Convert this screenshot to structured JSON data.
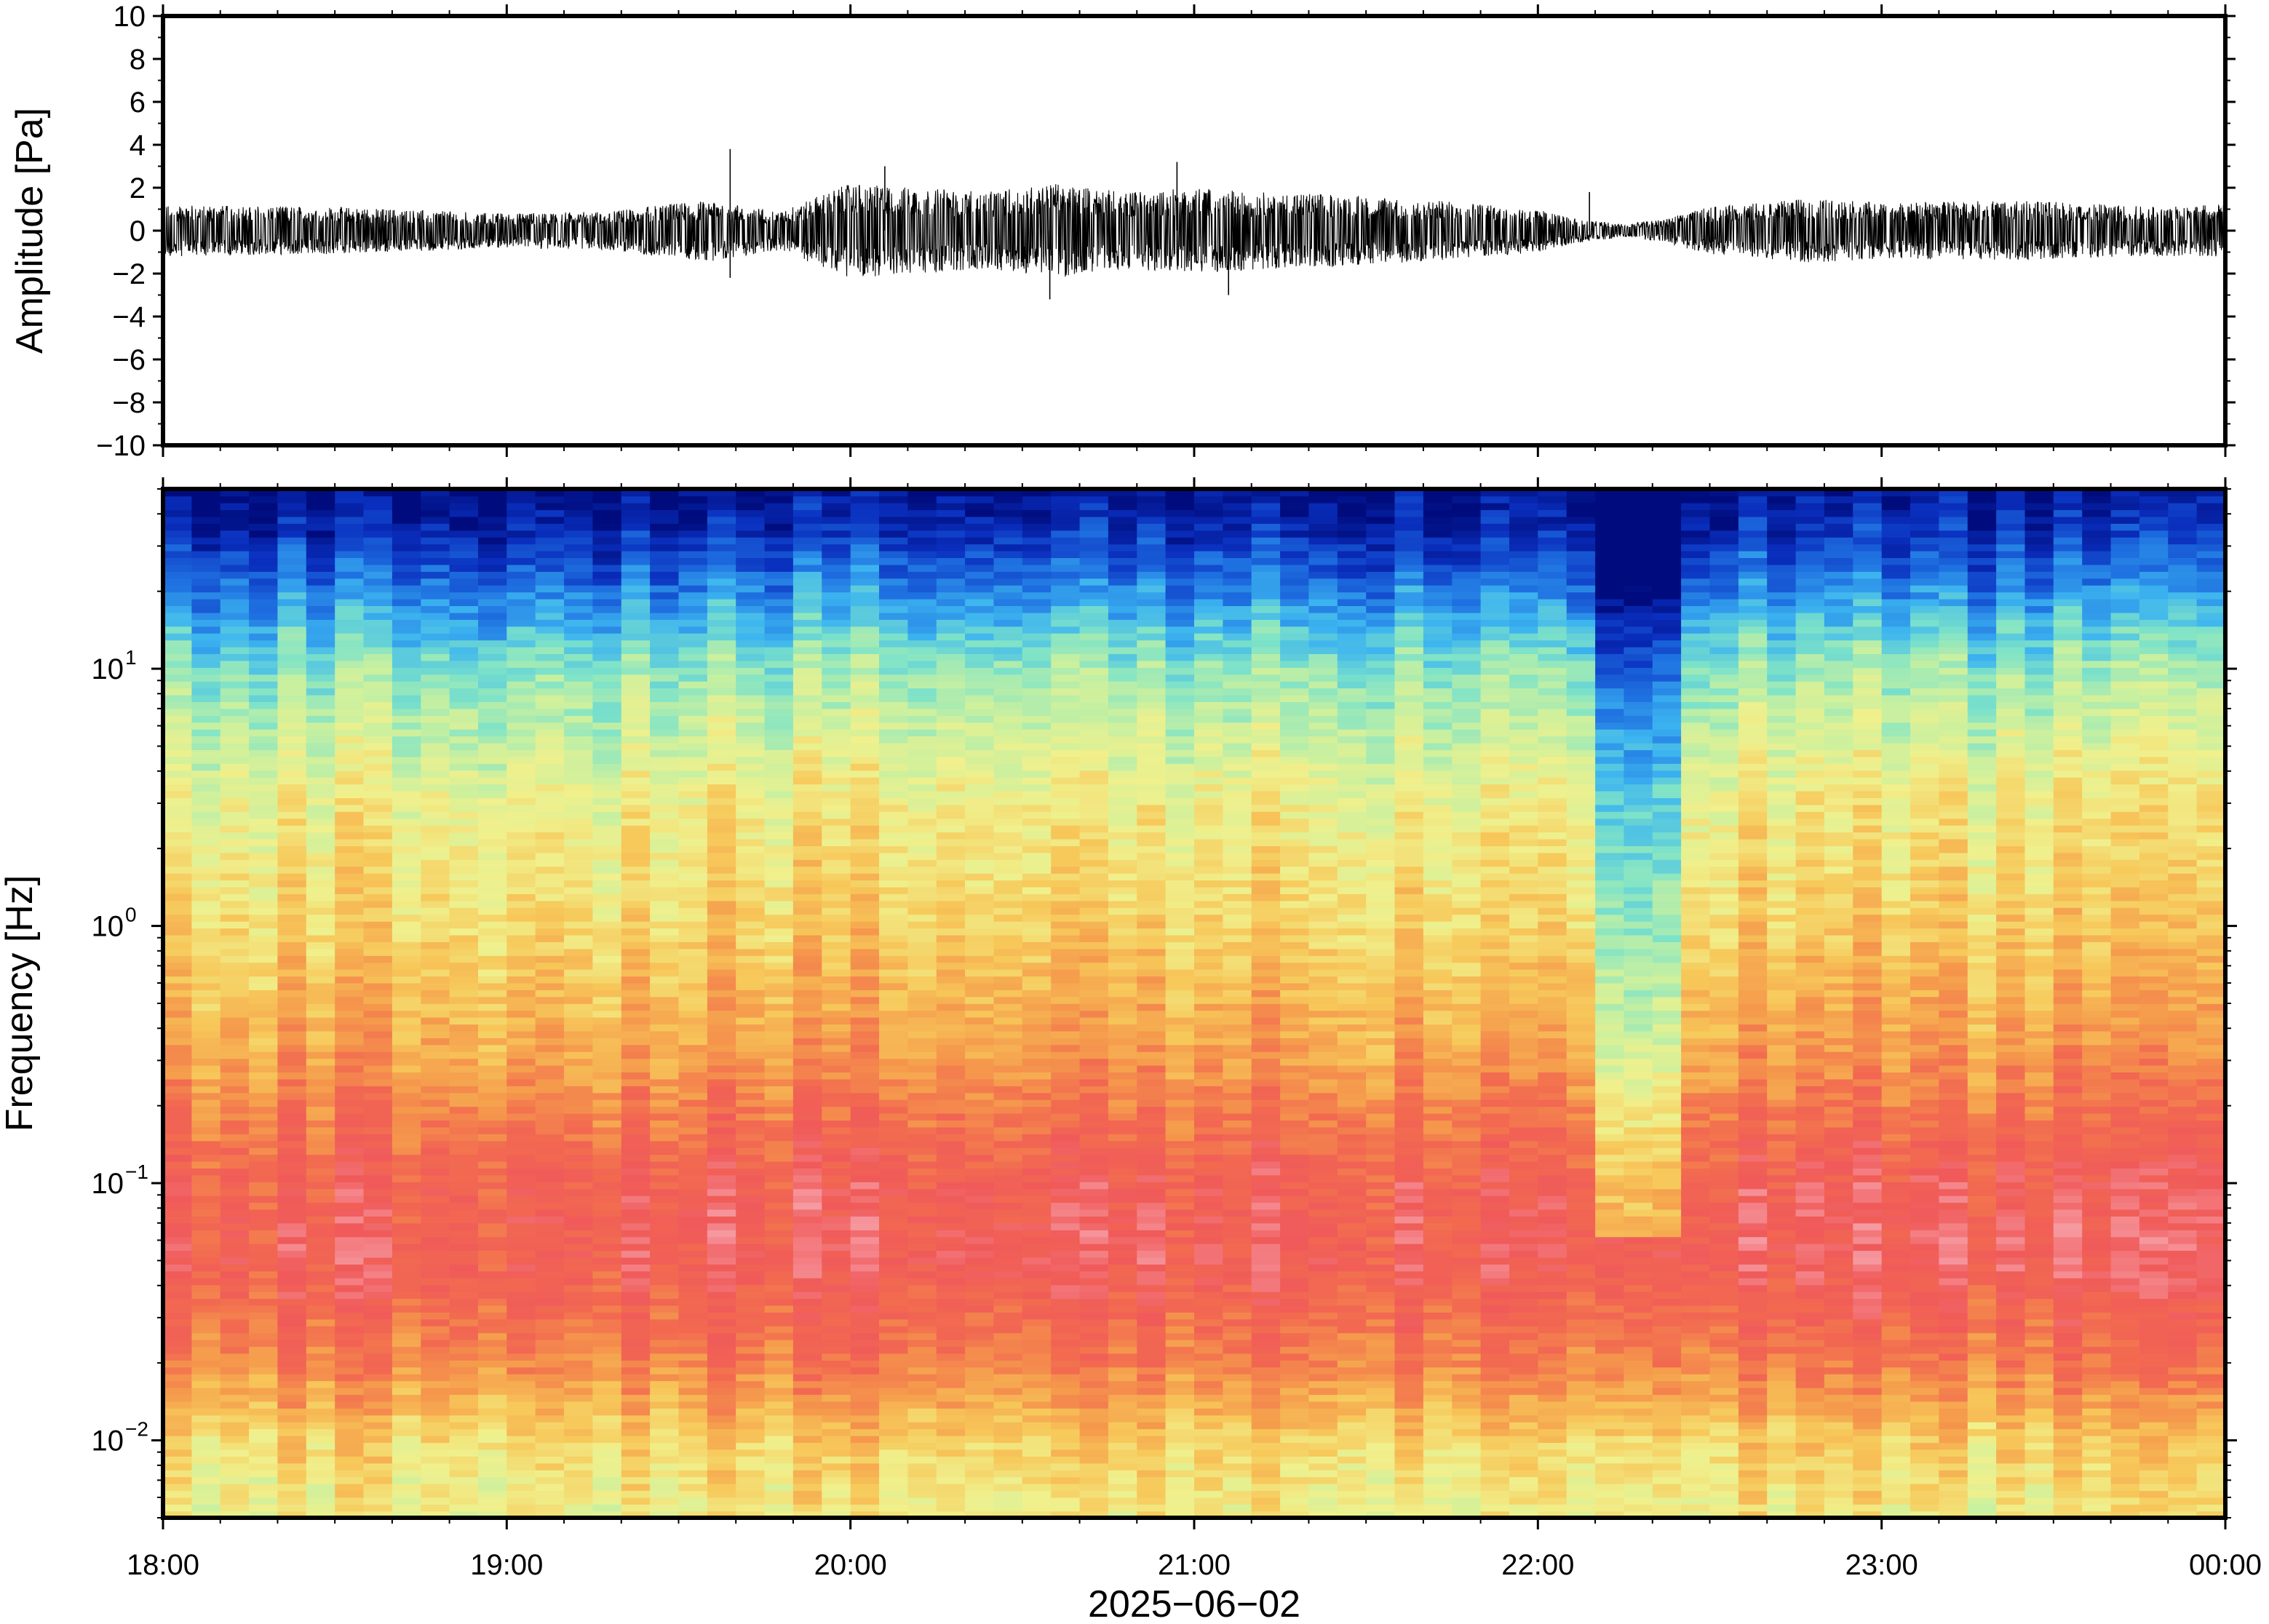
{
  "chart_data": [
    {
      "type": "line",
      "panel": "waveform",
      "ylabel": "Amplitude [Pa]",
      "ylim": [
        -10,
        10
      ],
      "yticks": [
        10,
        8,
        6,
        4,
        2,
        0,
        -2,
        -4,
        -6,
        -8,
        -10
      ],
      "ytick_labels": [
        "10",
        "8",
        "6",
        "4",
        "2",
        "0",
        "−2",
        "−4",
        "−6",
        "−8",
        "−10"
      ],
      "x_range_hours": [
        18,
        24
      ],
      "envelope": {
        "x_hours": [
          18.0,
          18.5,
          19.0,
          19.3,
          19.5,
          19.6,
          19.8,
          19.9,
          20.0,
          20.2,
          20.4,
          20.6,
          20.8,
          21.0,
          21.2,
          21.4,
          21.6,
          21.8,
          22.0,
          22.1,
          22.25,
          22.35,
          22.5,
          22.8,
          23.0,
          23.4,
          23.7,
          24.0
        ],
        "max_amp": [
          1.2,
          1.1,
          0.8,
          0.9,
          1.3,
          1.4,
          0.9,
          1.6,
          2.2,
          2.0,
          1.8,
          2.2,
          1.8,
          2.0,
          1.8,
          1.7,
          1.5,
          1.3,
          1.0,
          0.6,
          0.3,
          0.5,
          1.1,
          1.5,
          1.3,
          1.4,
          1.2,
          1.2
        ]
      },
      "spikes": [
        {
          "x_hours": 19.65,
          "y": 3.8
        },
        {
          "x_hours": 19.65,
          "y": -2.2
        },
        {
          "x_hours": 20.1,
          "y": 3.0
        },
        {
          "x_hours": 20.58,
          "y": -3.2
        },
        {
          "x_hours": 20.95,
          "y": 3.2
        },
        {
          "x_hours": 21.1,
          "y": -3.0
        },
        {
          "x_hours": 22.15,
          "y": 1.8
        }
      ]
    },
    {
      "type": "heatmap",
      "panel": "spectrogram",
      "ylabel": "Frequency [Hz]",
      "yscale": "log",
      "ylim": [
        0.005,
        50
      ],
      "yticks": [
        0.01,
        0.1,
        1,
        10
      ],
      "ytick_labels": [
        {
          "base": "10",
          "exp": "−2"
        },
        {
          "base": "10",
          "exp": "−1"
        },
        {
          "base": "10",
          "exp": "0"
        },
        {
          "base": "10",
          "exp": "1"
        }
      ],
      "xlabel": "2025−06−02",
      "xticks": [
        "18:00",
        "19:00",
        "20:00",
        "21:00",
        "22:00",
        "23:00",
        "00:00"
      ],
      "colormap": [
        "#000c7d",
        "#0a2fbe",
        "#1e6fe0",
        "#3cb4f0",
        "#7ee3c8",
        "#c8f0a0",
        "#f0f08c",
        "#f7c85a",
        "#f59a4c",
        "#f26a50",
        "#f05a5a",
        "#f7a0a8"
      ],
      "quiet_period_hours": [
        22.2,
        22.45
      ]
    }
  ]
}
